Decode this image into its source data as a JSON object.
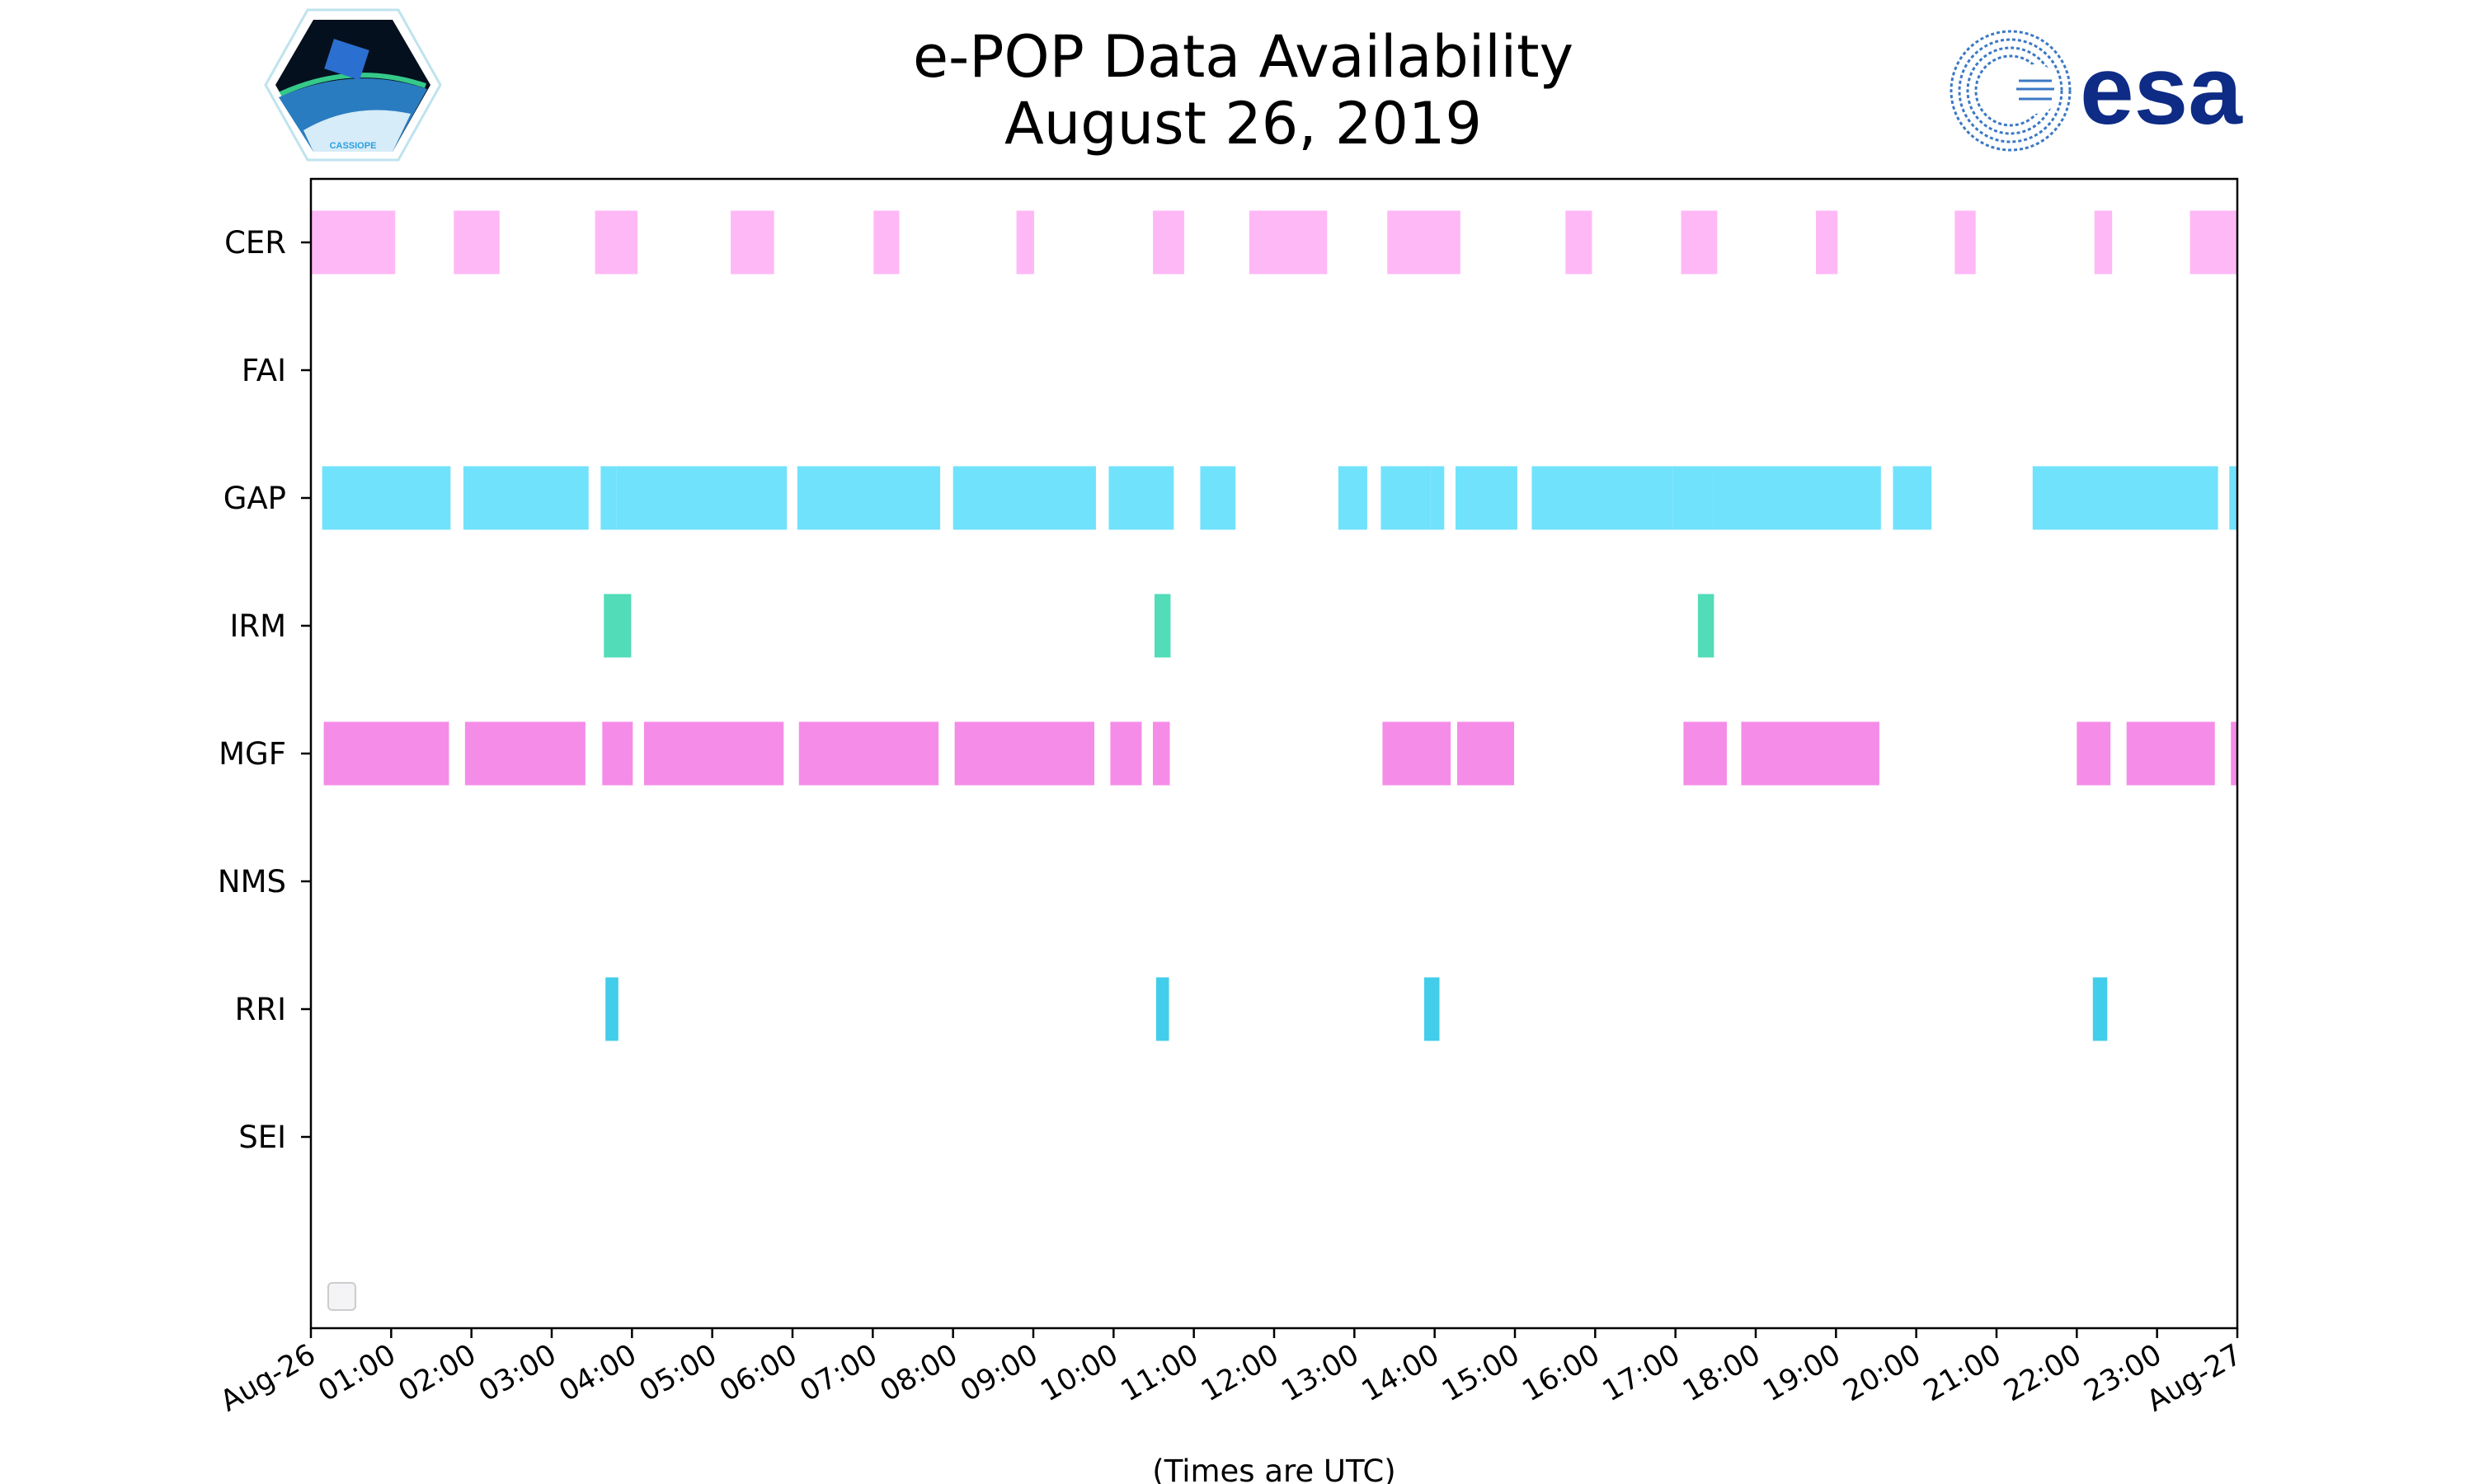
{
  "header": {
    "title_line1": "e-POP Data Availability",
    "title_line2": "August 26, 2019",
    "logo_left_text": "CASSIOPE",
    "logo_right_text": "esa"
  },
  "chart_data": {
    "type": "broken-barh",
    "title": "e-POP Data Availability\nAugust 26, 2019",
    "xlabel": "(Times are UTC)",
    "ylabel": "",
    "xlim_hours": [
      0,
      24
    ],
    "x_tick_labels": [
      "Aug-26",
      "01:00",
      "02:00",
      "03:00",
      "04:00",
      "05:00",
      "06:00",
      "07:00",
      "08:00",
      "09:00",
      "10:00",
      "11:00",
      "12:00",
      "13:00",
      "14:00",
      "15:00",
      "16:00",
      "17:00",
      "18:00",
      "19:00",
      "20:00",
      "21:00",
      "22:00",
      "23:00",
      "Aug-27"
    ],
    "categories": [
      "CER",
      "FAI",
      "GAP",
      "IRM",
      "MGF",
      "NMS",
      "RRI",
      "SEI"
    ],
    "legend": "lower-left (empty)",
    "grid": false,
    "series": [
      {
        "name": "CER",
        "color": "#ffb0f5",
        "segments_hours": [
          [
            0,
            1.05
          ],
          [
            1.78,
            2.35
          ],
          [
            3.54,
            4.07
          ],
          [
            5.23,
            5.77
          ],
          [
            7.01,
            7.33
          ],
          [
            8.79,
            9.01
          ],
          [
            10.49,
            10.88
          ],
          [
            11.69,
            12.66
          ],
          [
            13.41,
            14.32
          ],
          [
            15.63,
            15.96
          ],
          [
            17.07,
            17.52
          ],
          [
            18.75,
            19.02
          ],
          [
            20.48,
            20.74
          ],
          [
            22.22,
            22.44
          ],
          [
            23.41,
            24
          ]
        ]
      },
      {
        "name": "FAI",
        "color": "#cccccc",
        "segments_hours": []
      },
      {
        "name": "GAP",
        "color": "#62dffc",
        "segments_hours": [
          [
            0.14,
            1.74
          ],
          [
            1.9,
            3.46
          ],
          [
            3.61,
            3.81
          ],
          [
            3.81,
            5.93
          ],
          [
            6.06,
            7.84
          ],
          [
            8.0,
            9.78
          ],
          [
            9.94,
            10.75
          ],
          [
            11.08,
            11.52
          ],
          [
            12.8,
            13.16
          ],
          [
            13.33,
            13.95
          ],
          [
            13.95,
            14.12
          ],
          [
            14.26,
            15.03
          ],
          [
            15.21,
            16.97
          ],
          [
            16.97,
            17.46
          ],
          [
            17.46,
            19.56
          ],
          [
            19.71,
            20.19
          ],
          [
            21.45,
            23.76
          ],
          [
            23.9,
            24
          ]
        ]
      },
      {
        "name": "IRM",
        "color": "#3fd8b0",
        "segments_hours": [
          [
            3.65,
            3.99
          ],
          [
            10.51,
            10.71
          ],
          [
            17.28,
            17.48
          ]
        ]
      },
      {
        "name": "MGF",
        "color": "#f47fe6",
        "segments_hours": [
          [
            0.16,
            1.72
          ],
          [
            1.92,
            3.42
          ],
          [
            3.63,
            4.01
          ],
          [
            4.15,
            5.89
          ],
          [
            6.08,
            7.82
          ],
          [
            8.02,
            9.76
          ],
          [
            9.96,
            10.35
          ],
          [
            10.49,
            10.7
          ],
          [
            13.35,
            14.08
          ],
          [
            14.08,
            14.2
          ],
          [
            14.28,
            14.99
          ],
          [
            17.1,
            17.64
          ],
          [
            17.82,
            19.54
          ],
          [
            22.0,
            22.42
          ],
          [
            22.62,
            23.72
          ],
          [
            23.92,
            24
          ]
        ]
      },
      {
        "name": "NMS",
        "color": "#cccccc",
        "segments_hours": []
      },
      {
        "name": "RRI",
        "color": "#2ec8e8",
        "segments_hours": [
          [
            3.67,
            3.83
          ],
          [
            10.53,
            10.69
          ],
          [
            13.87,
            14.06
          ],
          [
            22.2,
            22.38
          ]
        ]
      },
      {
        "name": "SEI",
        "color": "#cccccc",
        "segments_hours": []
      }
    ]
  }
}
